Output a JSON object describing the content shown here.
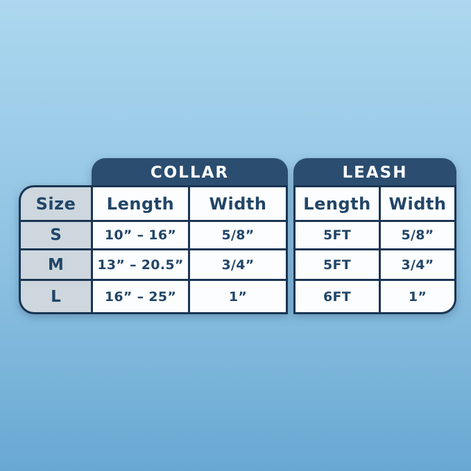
{
  "colors": {
    "bg-top": "#acd7ef",
    "bg-bottom": "#68a8d2",
    "navy-header": "#2b4d70",
    "border-navy": "#1a3553",
    "text-navy": "#224668",
    "size-col-bg": "#cdd7dd",
    "cell-bg": "#fcfdfe",
    "header-text": "#ffffff"
  },
  "chart_data": {
    "type": "table",
    "size_header": "Size",
    "sizes": [
      "S",
      "M",
      "L"
    ],
    "sections": [
      {
        "title": "COLLAR",
        "columns": [
          "Length",
          "Width"
        ],
        "rows": [
          [
            "10” – 16”",
            "5/8”"
          ],
          [
            "13” – 20.5”",
            "3/4”"
          ],
          [
            "16” – 25”",
            "1”"
          ]
        ]
      },
      {
        "title": "LEASH",
        "columns": [
          "Length",
          "Width"
        ],
        "rows": [
          [
            "5FT",
            "5/8”"
          ],
          [
            "5FT",
            "3/4”"
          ],
          [
            "6FT",
            "1”"
          ]
        ]
      }
    ]
  }
}
